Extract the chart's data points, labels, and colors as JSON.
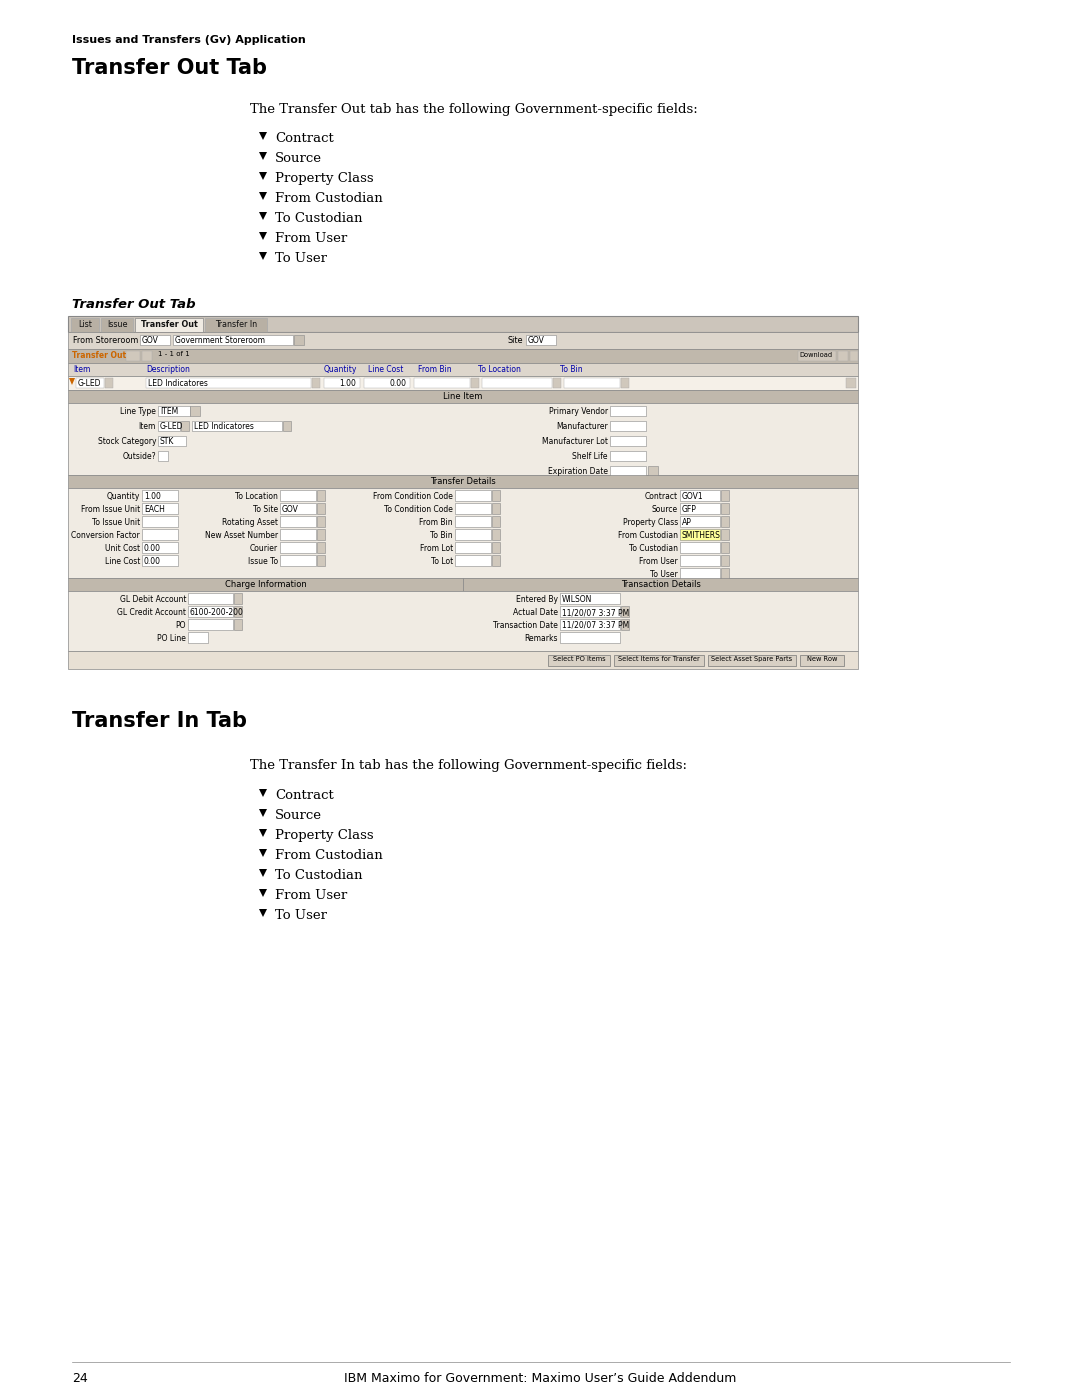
{
  "bg_color": "#ffffff",
  "page_number": "24",
  "footer_text": "IBM Maximo for Government: Maximo User’s Guide Addendum",
  "header_bold": "Issues and Transfers (Gv) Application",
  "section1_title": "Transfer Out Tab",
  "section1_intro": "The Transfer Out tab has the following Government-specific fields:",
  "section1_bullets": [
    "Contract",
    "Source",
    "Property Class",
    "From Custodian",
    "To Custodian",
    "From User",
    "To User"
  ],
  "figure_caption": "Transfer Out Tab",
  "section2_title": "Transfer In Tab",
  "section2_intro": "The Transfer In tab has the following Government-specific fields:",
  "section2_bullets": [
    "Contract",
    "Source",
    "Property Class",
    "From Custodian",
    "To Custodian",
    "From User",
    "To User"
  ],
  "screenshot": {
    "tabs": [
      "List",
      "Issue",
      "Transfer Out",
      "Transfer In"
    ],
    "active_tab": "Transfer Out",
    "from_storeroom_val": "GOV",
    "gov_storeroom_label": "Government Storeroom",
    "site_val": "GOV",
    "line_item_header": "Line Item",
    "transfer_details_header": "Transfer Details",
    "charge_info_header": "Charge Information",
    "transaction_details_header": "Transaction Details",
    "table_cols": [
      "Item",
      "Description",
      "Quantity",
      "Line Cost",
      "From Bin",
      "To Location",
      "To Bin"
    ],
    "table_row_item": "G-LED",
    "table_row_desc": "LED Indicatores",
    "table_row_qty": "1.00",
    "table_row_lcost": "0.00",
    "line_type_val": "ITEM",
    "item_val": "G-LED",
    "item_desc": "LED Indicatores",
    "stock_cat": "STK",
    "qty": "1.00",
    "from_issue_unit": "EACH",
    "to_site": "GOV",
    "contract": "GOV1",
    "source": "GFP",
    "property_class": "AP",
    "from_custodian_val": "SMITHERS",
    "unit_cost": "0.00",
    "line_cost": "0.00",
    "gl_credit": "6100-200-200",
    "entered_by": "WILSON",
    "actual_date": "11/20/07 3:37 PM",
    "transaction_date": "11/20/07 3:37 PM",
    "buttons": [
      "Select PO Items",
      "Select Items for Transfer",
      "Select Asset Spare Parts",
      "New Row"
    ]
  }
}
